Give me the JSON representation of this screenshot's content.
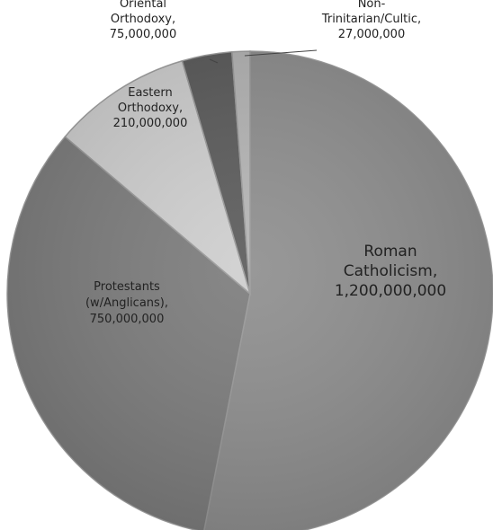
{
  "chart_data": {
    "type": "pie",
    "title": "",
    "legend": "none",
    "slices": [
      {
        "label_lines": [
          "Roman",
          "Catholicism,",
          "1,200,000,000"
        ],
        "value": 1200000000,
        "color": "#8f8f8f"
      },
      {
        "label_lines": [
          "Protestants",
          "(w/Anglicans),",
          "750,000,000"
        ],
        "value": 750000000,
        "color": "#7d7d7d"
      },
      {
        "label_lines": [
          "Eastern",
          "Orthodoxy,",
          "210,000,000"
        ],
        "value": 210000000,
        "color": "#cfcfcf"
      },
      {
        "label_lines": [
          "Oriental",
          "Orthodoxy,",
          "75,000,000"
        ],
        "value": 75000000,
        "color": "#5c5c5c"
      },
      {
        "label_lines": [
          "Non-",
          "Trinitarian/Cultic,",
          "27,000,000"
        ],
        "value": 27000000,
        "color": "#b5b5b5"
      }
    ]
  }
}
